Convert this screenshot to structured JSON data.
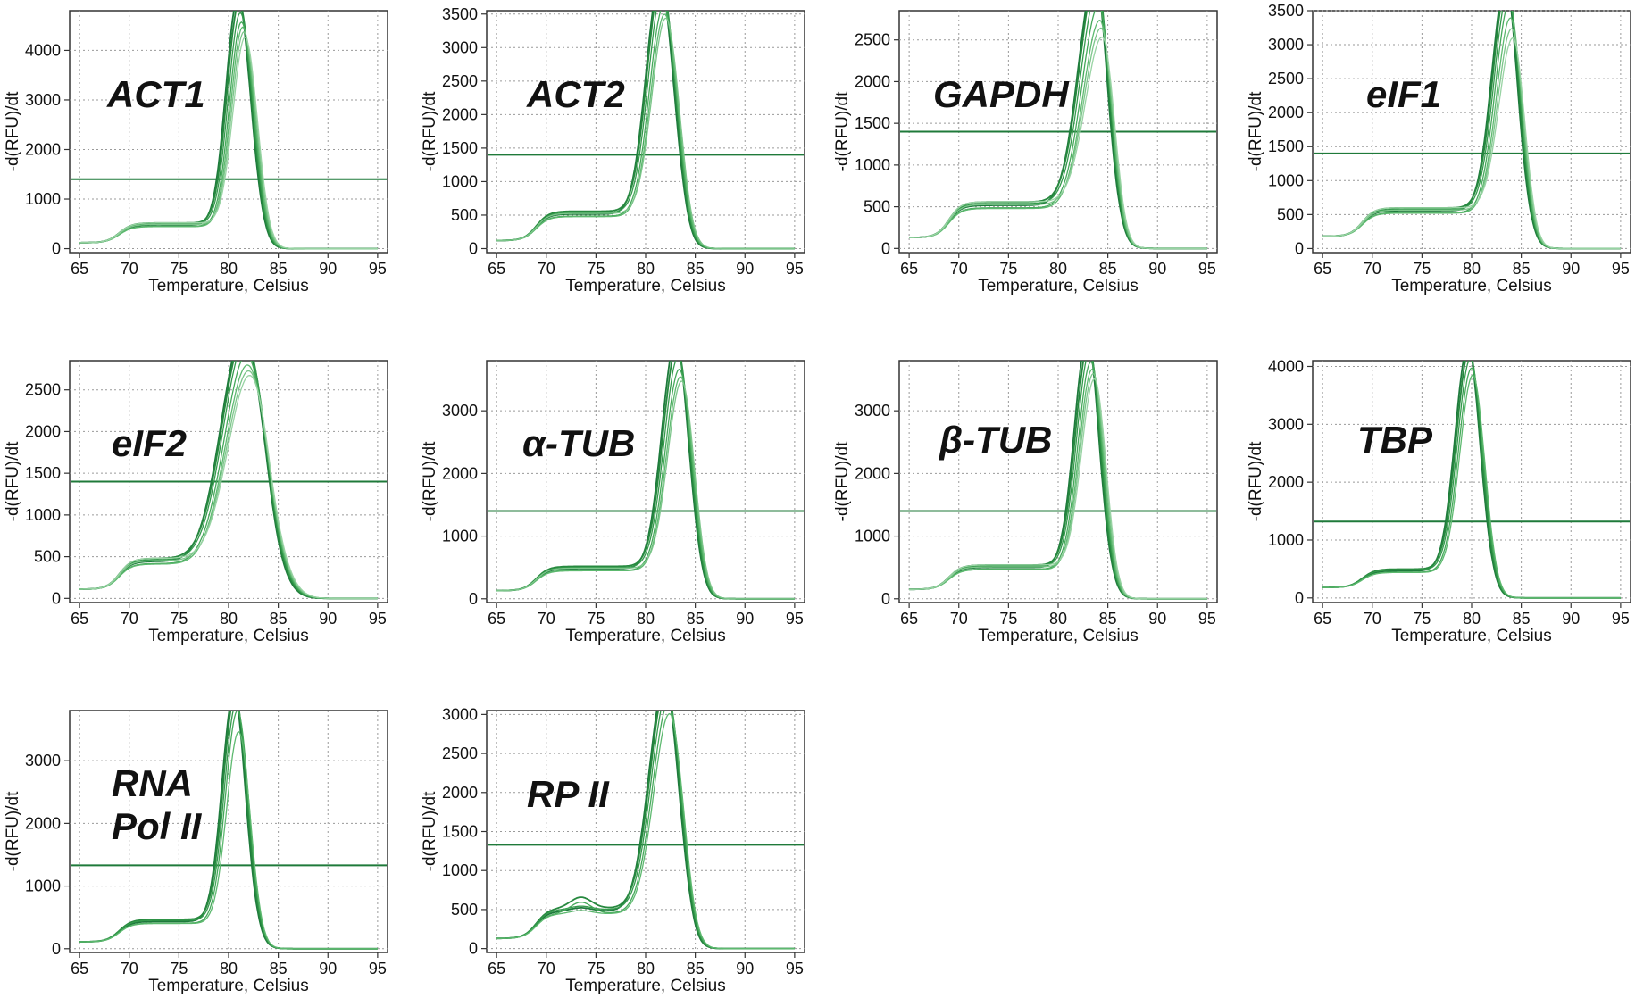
{
  "chart_data": [
    {
      "type": "line",
      "gene_label": [
        "ACT1"
      ],
      "xlabel": "Temperature, Celsius",
      "ylabel": "-d(RFU)/dt",
      "xlim": [
        64,
        96
      ],
      "ylim": [
        -80,
        4800
      ],
      "xticks": [
        65,
        70,
        75,
        80,
        85,
        90,
        95
      ],
      "yticks": [
        0,
        1000,
        2000,
        3000,
        4000
      ],
      "threshold": 1400,
      "curve": {
        "plateau": 520,
        "bump": 0,
        "peak_x": 81.3,
        "peak_y": 4580,
        "sigma_left": 1.2,
        "sigma_right": 1.2,
        "start": 120,
        "scales": [
          1,
          0.97,
          0.93,
          0.9,
          0.88,
          0.85,
          0.82
        ]
      }
    },
    {
      "type": "line",
      "gene_label": [
        "ACT2"
      ],
      "xlabel": "Temperature, Celsius",
      "ylabel": "-d(RFU)/dt",
      "xlim": [
        64,
        96
      ],
      "ylim": [
        -60,
        3550
      ],
      "xticks": [
        65,
        70,
        75,
        80,
        85,
        90,
        95
      ],
      "yticks": [
        0,
        500,
        1000,
        1500,
        2000,
        2500,
        3000,
        3500
      ],
      "threshold": 1400,
      "curve": {
        "plateau": 560,
        "bump": 0,
        "peak_x": 81.8,
        "peak_y": 3480,
        "sigma_left": 1.4,
        "sigma_right": 1.3,
        "start": 120,
        "scales": [
          1,
          0.99,
          0.95,
          0.9,
          0.87,
          0.84
        ]
      }
    },
    {
      "type": "line",
      "gene_label": [
        "GAPDH"
      ],
      "xlabel": "Temperature, Celsius",
      "ylabel": "-d(RFU)/dt",
      "xlim": [
        64,
        96
      ],
      "ylim": [
        -50,
        2850
      ],
      "xticks": [
        65,
        70,
        75,
        80,
        85,
        90,
        95
      ],
      "yticks": [
        0,
        500,
        1000,
        1500,
        2000,
        2500
      ],
      "threshold": 1400,
      "curve": {
        "plateau": 560,
        "bump": 0,
        "peak_x": 84.1,
        "peak_y": 2760,
        "sigma_left": 1.7,
        "sigma_right": 1.1,
        "start": 130,
        "scales": [
          1,
          0.98,
          0.93,
          0.88,
          0.82,
          0.77,
          0.72
        ]
      }
    },
    {
      "type": "line",
      "gene_label": [
        "eIF1"
      ],
      "xlabel": "Temperature, Celsius",
      "ylabel": "-d(RFU)/dt",
      "xlim": [
        64,
        96
      ],
      "ylim": [
        -60,
        3500
      ],
      "xticks": [
        65,
        70,
        75,
        80,
        85,
        90,
        95
      ],
      "yticks": [
        0,
        500,
        1000,
        1500,
        2000,
        2500,
        3000,
        3500
      ],
      "threshold": 1400,
      "curve": {
        "plateau": 600,
        "bump": 0,
        "peak_x": 83.8,
        "peak_y": 3350,
        "sigma_left": 1.4,
        "sigma_right": 1.1,
        "start": 180,
        "scales": [
          1,
          0.98,
          0.95,
          0.92,
          0.86,
          0.8,
          0.75
        ]
      }
    },
    {
      "type": "line",
      "gene_label": [
        "eIF2"
      ],
      "xlabel": "Temperature, Celsius",
      "ylabel": "-d(RFU)/dt",
      "xlim": [
        64,
        96
      ],
      "ylim": [
        -50,
        2850
      ],
      "xticks": [
        65,
        70,
        75,
        80,
        85,
        90,
        95
      ],
      "yticks": [
        0,
        500,
        1000,
        1500,
        2000,
        2500
      ],
      "threshold": 1400,
      "curve": {
        "plateau": 480,
        "bump": 0,
        "peak_x": 81.8,
        "peak_y": 2720,
        "sigma_left": 2.2,
        "sigma_right": 2.1,
        "start": 110,
        "scales": [
          1,
          0.98,
          0.96,
          0.92,
          0.88,
          0.84,
          0.81
        ]
      }
    },
    {
      "type": "line",
      "gene_label": [
        "α-TUB"
      ],
      "xlabel": "Temperature, Celsius",
      "ylabel": "-d(RFU)/dt",
      "xlim": [
        64,
        96
      ],
      "ylim": [
        -60,
        3800
      ],
      "xticks": [
        65,
        70,
        75,
        80,
        85,
        90,
        95
      ],
      "yticks": [
        0,
        1000,
        2000,
        3000
      ],
      "threshold": 1400,
      "curve": {
        "plateau": 520,
        "bump": 0,
        "peak_x": 83.4,
        "peak_y": 3650,
        "sigma_left": 1.4,
        "sigma_right": 1.2,
        "start": 130,
        "scales": [
          1,
          0.96,
          0.92,
          0.88,
          0.85,
          0.82
        ]
      }
    },
    {
      "type": "line",
      "gene_label": [
        "β-TUB"
      ],
      "xlabel": "Temperature, Celsius",
      "ylabel": "-d(RFU)/dt",
      "xlim": [
        64,
        96
      ],
      "ylim": [
        -60,
        3800
      ],
      "xticks": [
        65,
        70,
        75,
        80,
        85,
        90,
        95
      ],
      "yticks": [
        0,
        1000,
        2000,
        3000
      ],
      "threshold": 1400,
      "curve": {
        "plateau": 540,
        "bump": 0,
        "peak_x": 83.3,
        "peak_y": 3680,
        "sigma_left": 1.3,
        "sigma_right": 1.1,
        "start": 150,
        "scales": [
          1,
          0.96,
          0.93,
          0.9,
          0.87,
          0.84,
          0.81
        ]
      }
    },
    {
      "type": "line",
      "gene_label": [
        "TBP"
      ],
      "xlabel": "Temperature, Celsius",
      "ylabel": "-d(RFU)/dt",
      "xlim": [
        64,
        96
      ],
      "ylim": [
        -80,
        4100
      ],
      "xticks": [
        65,
        70,
        75,
        80,
        85,
        90,
        95
      ],
      "yticks": [
        0,
        1000,
        2000,
        3000,
        4000
      ],
      "threshold": 1320,
      "curve": {
        "plateau": 500,
        "bump": 0,
        "peak_x": 80.0,
        "peak_y": 3880,
        "sigma_left": 1.3,
        "sigma_right": 1.15,
        "start": 180,
        "scales": [
          1,
          0.97,
          0.94,
          0.91,
          0.88
        ]
      }
    },
    {
      "type": "line",
      "gene_label": [
        "RNA",
        "Pol II"
      ],
      "xlabel": "Temperature, Celsius",
      "ylabel": "-d(RFU)/dt",
      "xlim": [
        64,
        96
      ],
      "ylim": [
        -60,
        3800
      ],
      "xticks": [
        65,
        70,
        75,
        80,
        85,
        90,
        95
      ],
      "yticks": [
        0,
        1000,
        2000,
        3000
      ],
      "threshold": 1330,
      "curve": {
        "plateau": 470,
        "bump": 0,
        "peak_x": 80.9,
        "peak_y": 3650,
        "sigma_left": 1.2,
        "sigma_right": 1.1,
        "start": 110,
        "scales": [
          1,
          0.98,
          0.95,
          0.93,
          0.84
        ]
      }
    },
    {
      "type": "line",
      "gene_label": [
        "RP II"
      ],
      "xlabel": "Temperature, Celsius",
      "ylabel": "-d(RFU)/dt",
      "xlim": [
        64,
        96
      ],
      "ylim": [
        -50,
        3050
      ],
      "xticks": [
        65,
        70,
        75,
        80,
        85,
        90,
        95
      ],
      "yticks": [
        0,
        500,
        1000,
        1500,
        2000,
        2500,
        3000
      ],
      "threshold": 1330,
      "curve": {
        "plateau": 520,
        "bump": 1,
        "peak_x": 82.3,
        "peak_y": 2920,
        "sigma_left": 1.6,
        "sigma_right": 1.3,
        "start": 130,
        "scales": [
          1,
          0.98,
          0.95,
          0.92,
          0.88
        ]
      }
    }
  ]
}
